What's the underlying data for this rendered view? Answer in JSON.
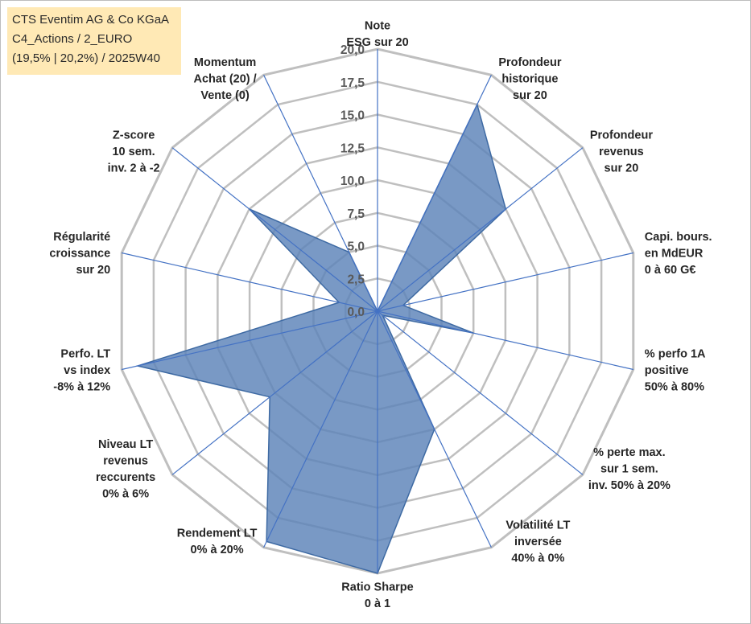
{
  "title": {
    "line1": "CTS Eventim AG & Co KGaA",
    "line2": "C4_Actions / 2_EURO",
    "line3": "(19,5% | 20,2%) / 2025W40"
  },
  "chart_data": {
    "type": "radar",
    "scale": {
      "min": 0,
      "max": 20,
      "step": 2.5
    },
    "tick_labels": [
      "0,0",
      "2,5",
      "5,0",
      "7,5",
      "10,0",
      "12,5",
      "15,0",
      "17,5",
      "20,0"
    ],
    "axes": [
      [
        "Note",
        "ESG sur 20"
      ],
      [
        "Profondeur",
        "historique",
        "sur 20"
      ],
      [
        "Profondeur",
        "revenus",
        "sur 20"
      ],
      [
        "Capi. bours.",
        "en MdEUR",
        "0 à 60 G€"
      ],
      [
        "% perfo 1A",
        "positive",
        "50% à 80%"
      ],
      [
        "% perte max.",
        "sur 1 sem.",
        "inv. 50% à 20%"
      ],
      [
        "Volatilité LT",
        "inversée",
        "40% à 0%"
      ],
      [
        "Ratio Sharpe",
        "0 à 1"
      ],
      [
        "Rendement LT",
        "0% à 20%"
      ],
      [
        "Niveau LT",
        "revenus",
        "reccurents",
        "0% à 6%"
      ],
      [
        "Perfo. LT",
        "vs index",
        "-8% à 12%"
      ],
      [
        "Régularité",
        "croissance",
        "sur 20"
      ],
      [
        "Z-score",
        "10 sem.",
        "inv. 2 à -2"
      ],
      [
        "Momentum",
        "Achat (20) /",
        "Vente (0)"
      ]
    ],
    "series": [
      {
        "name": "CTS Eventim AG & Co KGaA",
        "values": [
          0,
          17.5,
          12.5,
          2.0,
          7.5,
          0.5,
          10.0,
          20.0,
          19.5,
          10.5,
          18.75,
          3.0,
          12.5,
          5.0
        ]
      }
    ],
    "colors": {
      "fill": "#5b82b8",
      "stroke": "#3e6aa3",
      "grid": "#bfbfbf",
      "spoke": "#4472c4"
    }
  }
}
